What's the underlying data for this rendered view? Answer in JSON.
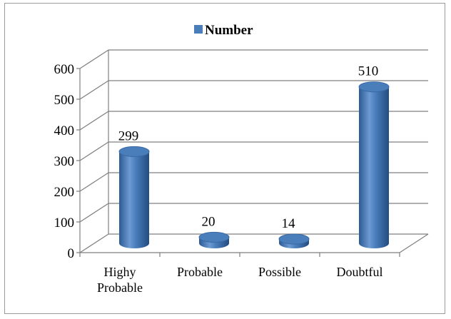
{
  "chart_data": {
    "type": "bar",
    "style": "3d-cylinder",
    "categories": [
      "Highy Probable",
      "Probable",
      "Possible",
      "Doubtful"
    ],
    "series": [
      {
        "name": "Number",
        "values": [
          299,
          20,
          14,
          510
        ]
      }
    ],
    "data_labels": [
      "299",
      "20",
      "14",
      "510"
    ],
    "ylim": [
      0,
      600
    ],
    "yticks": [
      0,
      100,
      200,
      300,
      400,
      500,
      600
    ],
    "grid": true,
    "legend": {
      "position": "top",
      "entries": [
        "Number"
      ]
    },
    "colors": {
      "bar": "#4a7ebb",
      "bar_dark": "#2c5a93",
      "bar_light": "#8fb3e0",
      "grid": "#7f7f7f"
    }
  }
}
